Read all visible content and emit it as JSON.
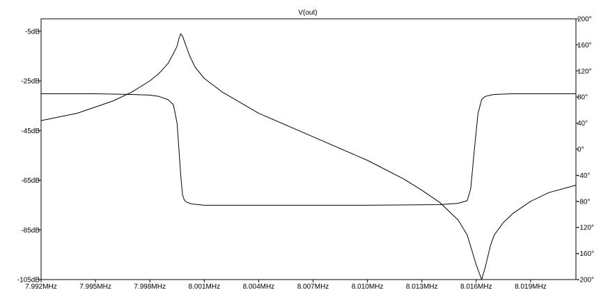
{
  "chart_data": {
    "type": "line",
    "title": "V(out)",
    "xlabel": "",
    "ylabel": "",
    "x_unit": "MHz",
    "xlim": [
      7.992,
      8.0215
    ],
    "ylim_left": [
      -105,
      0
    ],
    "ylim_right": [
      -200,
      200
    ],
    "x_ticks": [
      7.992,
      7.995,
      7.998,
      8.001,
      8.004,
      8.007,
      8.01,
      8.013,
      8.016,
      8.019
    ],
    "x_tick_labels": [
      "7.992MHz",
      "7.995MHz",
      "7.998MHz",
      "8.001MHz",
      "8.004MHz",
      "8.007MHz",
      "8.010MHz",
      "8.013MHz",
      "8.016MHz",
      "8.019MHz"
    ],
    "y_left_ticks": [
      -5,
      -25,
      -45,
      -65,
      -85,
      -105
    ],
    "y_left_tick_labels": [
      "-5dB",
      "-25dB",
      "-45dB",
      "-65dB",
      "-85dB",
      "-105dB"
    ],
    "y_right_ticks": [
      200,
      160,
      120,
      80,
      40,
      0,
      -40,
      -80,
      -120,
      -160,
      -200
    ],
    "y_right_tick_labels": [
      "200°",
      "160°",
      "120°",
      "80°",
      "40°",
      "0°",
      "-40°",
      "-80°",
      "-120°",
      "-160°",
      "-200°"
    ],
    "grid": false,
    "series": [
      {
        "axis": "left",
        "dash": "solid",
        "x": [
          7.992,
          7.994,
          7.996,
          7.997,
          7.998,
          7.9985,
          7.999,
          7.9993,
          7.9995,
          7.9996,
          7.9997,
          7.9998,
          7.9999,
          8.0,
          8.0002,
          8.0005,
          8.001,
          8.002,
          8.004,
          8.007,
          8.01,
          8.012,
          8.013,
          8.014,
          8.015,
          8.0155,
          8.016,
          8.0163,
          8.0165,
          8.0168,
          8.017,
          8.0175,
          8.018,
          8.019,
          8.02,
          8.0215
        ],
        "values": [
          -41,
          -38,
          -33,
          -29.5,
          -25,
          -22,
          -18,
          -14,
          -11,
          -8,
          -6,
          -7,
          -9,
          -11,
          -15,
          -19.5,
          -24,
          -29.5,
          -38,
          -47.5,
          -57,
          -64.5,
          -69,
          -74,
          -81,
          -87,
          -99,
          -105,
          -100,
          -91,
          -87,
          -82,
          -78.5,
          -73.5,
          -70,
          -67
        ]
      },
      {
        "axis": "right",
        "dash": "solid",
        "x": [
          7.992,
          7.995,
          7.997,
          7.998,
          7.9985,
          7.999,
          7.9993,
          7.9995,
          7.9996,
          7.9997,
          7.9998,
          7.9999,
          8.0,
          8.0003,
          8.001,
          8.005,
          8.01,
          8.014,
          8.015,
          8.0155,
          8.0157,
          8.0159,
          8.0161,
          8.0163,
          8.0165,
          8.0168,
          8.017,
          8.018,
          8.0215
        ],
        "values": [
          85,
          85,
          84,
          83,
          81,
          76,
          68,
          40,
          0,
          -40,
          -70,
          -78,
          -81,
          -84,
          -86,
          -86,
          -86,
          -85,
          -83,
          -79,
          -60,
          0,
          55,
          76,
          81,
          83,
          84,
          85,
          85
        ]
      }
    ]
  }
}
